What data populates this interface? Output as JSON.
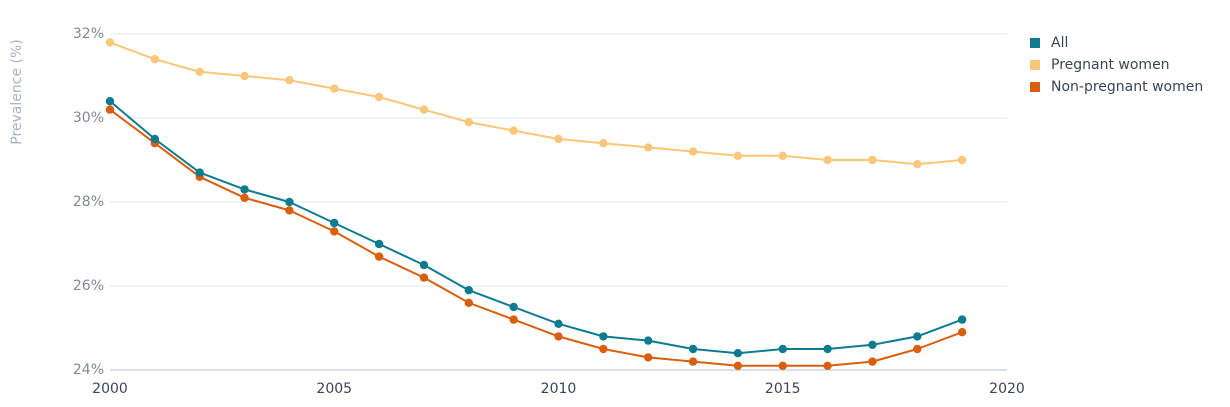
{
  "chart_data": {
    "type": "line",
    "title": "",
    "xlabel": "",
    "ylabel": "Prevalence (%)",
    "xlim": [
      2000,
      2020
    ],
    "ylim": [
      24,
      32
    ],
    "x_ticks": [
      2000,
      2005,
      2010,
      2015,
      2020
    ],
    "y_ticks": [
      24,
      26,
      28,
      30,
      32
    ],
    "y_tick_labels": [
      "24%",
      "26%",
      "28%",
      "30%",
      "32%"
    ],
    "grid": "horizontal",
    "legend_position": "top-right",
    "x": [
      2000,
      2001,
      2002,
      2003,
      2004,
      2005,
      2006,
      2007,
      2008,
      2009,
      2010,
      2011,
      2012,
      2013,
      2014,
      2015,
      2016,
      2017,
      2018,
      2019
    ],
    "series": [
      {
        "name": "Pregnant women",
        "color": "#f8c77a",
        "values": [
          31.8,
          31.4,
          31.1,
          31.0,
          30.9,
          30.7,
          30.5,
          30.2,
          29.9,
          29.7,
          29.5,
          29.4,
          29.3,
          29.2,
          29.1,
          29.1,
          29.0,
          29.0,
          28.9,
          29.0
        ]
      },
      {
        "name": "Non-pregnant women",
        "color": "#d95f0e",
        "values": [
          30.2,
          29.4,
          28.6,
          28.1,
          27.8,
          27.3,
          26.7,
          26.2,
          25.6,
          25.2,
          24.8,
          24.5,
          24.3,
          24.2,
          24.1,
          24.1,
          24.1,
          24.2,
          24.5,
          24.9
        ]
      },
      {
        "name": "All",
        "color": "#0f7b91",
        "values": [
          30.4,
          29.5,
          28.7,
          28.3,
          28.0,
          27.5,
          27.0,
          26.5,
          25.9,
          25.5,
          25.1,
          24.8,
          24.7,
          24.5,
          24.4,
          24.5,
          24.5,
          24.6,
          24.8,
          25.2
        ]
      }
    ],
    "legend_order": [
      "All",
      "Pregnant women",
      "Non-pregnant women"
    ]
  },
  "colors": {
    "grid": "#dfe8ee",
    "axis": "#a9c8d6"
  }
}
